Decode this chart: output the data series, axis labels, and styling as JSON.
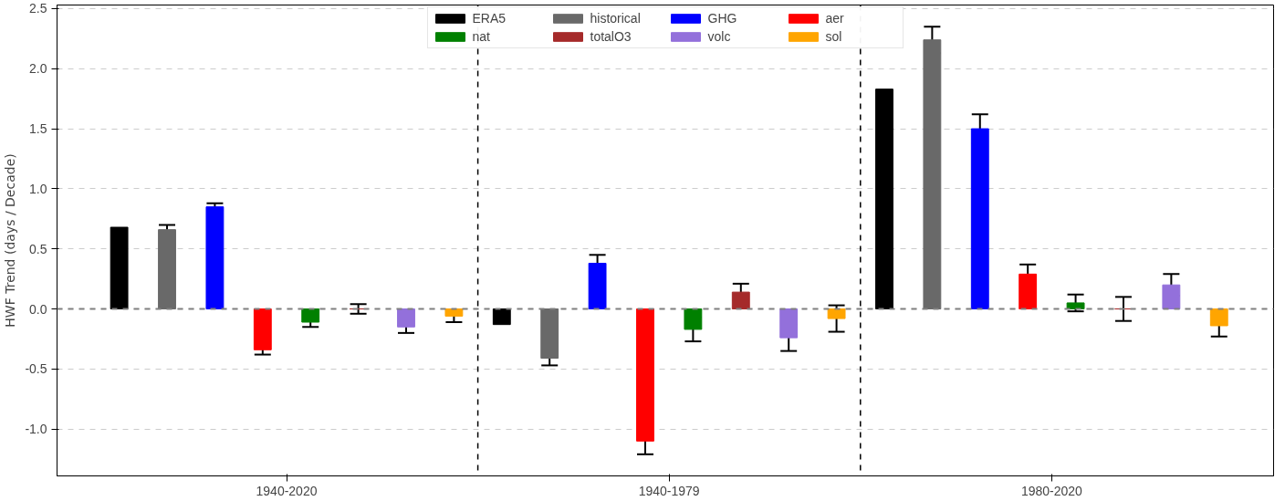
{
  "chart_data": {
    "type": "bar",
    "ylabel": "HWF Trend (days / Decade)",
    "categories": [
      "1940-2020",
      "1940-1979",
      "1980-2020"
    ],
    "series": [
      {
        "name": "ERA5",
        "color": "#000000",
        "values": [
          0.68,
          -0.13,
          1.83
        ]
      },
      {
        "name": "historical",
        "color": "#696969",
        "values": [
          0.66,
          -0.41,
          2.24
        ],
        "errors": [
          0.04,
          0.06,
          0.11
        ]
      },
      {
        "name": "GHG",
        "color": "#0000ff",
        "values": [
          0.85,
          0.38,
          1.5
        ],
        "errors": [
          0.03,
          0.07,
          0.12
        ]
      },
      {
        "name": "aer",
        "color": "#ff0000",
        "values": [
          -0.34,
          -1.1,
          0.29
        ],
        "errors": [
          0.04,
          0.11,
          0.08
        ]
      },
      {
        "name": "nat",
        "color": "#008000",
        "values": [
          -0.11,
          -0.17,
          0.05
        ],
        "errors": [
          0.04,
          0.1,
          0.07
        ]
      },
      {
        "name": "totalO3",
        "color": "#a52a2a",
        "values": [
          0,
          0.14,
          0
        ],
        "errors": [
          0.04,
          0.07,
          0.1
        ]
      },
      {
        "name": "volc",
        "color": "#9370db",
        "values": [
          -0.15,
          -0.24,
          0.2
        ],
        "errors": [
          0.05,
          0.11,
          0.09
        ]
      },
      {
        "name": "sol",
        "color": "#ffa500",
        "values": [
          -0.06,
          -0.08,
          -0.14
        ],
        "errors": [
          0.05,
          0.11,
          0.09
        ]
      }
    ],
    "ylim": [
      -1.39,
      2.53
    ],
    "yticks": [
      {
        "value": -1,
        "label": "-1.0"
      },
      -0.5,
      {
        "value": 0,
        "label": "0.0"
      },
      0.5,
      {
        "value": 1,
        "label": "1.0"
      },
      1.5,
      {
        "value": 2,
        "label": "2.0"
      },
      2.5
    ],
    "ref_lines": [
      {
        "axis": "y",
        "value": 0,
        "color": "#808080",
        "line_style": "dashed"
      }
    ],
    "grid": "y",
    "legend": "top"
  }
}
